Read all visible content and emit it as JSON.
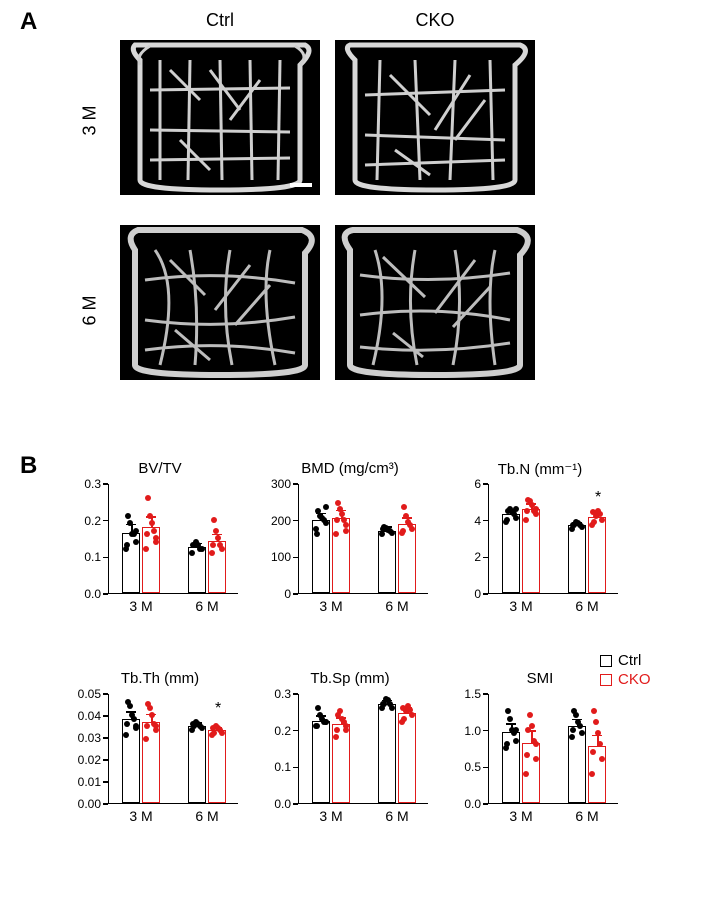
{
  "colors": {
    "ctrl": "#000000",
    "cko": "#e11b1b",
    "bg": "#ffffff"
  },
  "panelA": {
    "label": "A",
    "cols": [
      "Ctrl",
      "CKO"
    ],
    "rows": [
      "3 M",
      "6 M"
    ]
  },
  "panelB": {
    "label": "B",
    "legend": {
      "ctrl": "Ctrl",
      "cko": "CKO"
    },
    "x_labels": [
      "3 M",
      "6 M"
    ],
    "charts": [
      {
        "title": "BV/TV",
        "ylim": [
          0.0,
          0.3
        ],
        "yticks": [
          0.0,
          0.1,
          0.2,
          0.3
        ],
        "tick_format": "0.1",
        "groups": [
          {
            "ctrl": {
              "mean": 0.165,
              "err": 0.02,
              "points": [
                0.12,
                0.14,
                0.16,
                0.16,
                0.19,
                0.21,
                0.13,
                0.17
              ]
            },
            "cko": {
              "mean": 0.18,
              "err": 0.025,
              "points": [
                0.12,
                0.15,
                0.17,
                0.19,
                0.21,
                0.26,
                0.16,
                0.14
              ]
            }
          },
          {
            "ctrl": {
              "mean": 0.125,
              "err": 0.008,
              "points": [
                0.11,
                0.12,
                0.12,
                0.13,
                0.14,
                0.13,
                0.13
              ]
            },
            "cko": {
              "mean": 0.142,
              "err": 0.015,
              "points": [
                0.11,
                0.12,
                0.13,
                0.15,
                0.17,
                0.2,
                0.13
              ]
            }
          }
        ]
      },
      {
        "title": "BMD (mg/cm³)",
        "ylim": [
          0,
          300
        ],
        "yticks": [
          0,
          100,
          200,
          300
        ],
        "tick_format": "int",
        "groups": [
          {
            "ctrl": {
              "mean": 200,
              "err": 15,
              "points": [
                175,
                190,
                200,
                205,
                210,
                225,
                160,
                235
              ]
            },
            "cko": {
              "mean": 205,
              "err": 18,
              "points": [
                160,
                185,
                200,
                215,
                230,
                245,
                200,
                170
              ]
            }
          },
          {
            "ctrl": {
              "mean": 170,
              "err": 8,
              "points": [
                160,
                165,
                170,
                172,
                178,
                180,
                175
              ]
            },
            "cko": {
              "mean": 188,
              "err": 14,
              "points": [
                165,
                175,
                185,
                195,
                210,
                235,
                170
              ]
            }
          }
        ]
      },
      {
        "title": "Tb.N (mm⁻¹)",
        "ylim": [
          0,
          6
        ],
        "yticks": [
          0,
          2,
          4,
          6
        ],
        "tick_format": "int",
        "sig": [
          {
            "group": 1,
            "label": "*"
          }
        ],
        "groups": [
          {
            "ctrl": {
              "mean": 4.3,
              "err": 0.2,
              "points": [
                3.9,
                4.1,
                4.3,
                4.4,
                4.6,
                4.5,
                4.0,
                4.6
              ]
            },
            "cko": {
              "mean": 4.6,
              "err": 0.22,
              "points": [
                4.0,
                4.3,
                4.5,
                4.8,
                5.0,
                5.1,
                4.5,
                4.6
              ]
            }
          },
          {
            "ctrl": {
              "mean": 3.7,
              "err": 0.1,
              "points": [
                3.5,
                3.6,
                3.7,
                3.8,
                3.9,
                3.7,
                3.7
              ]
            },
            "cko": {
              "mean": 4.15,
              "err": 0.18,
              "points": [
                3.7,
                4.0,
                4.3,
                4.5,
                4.2,
                3.9,
                4.4
              ]
            }
          }
        ]
      },
      {
        "title": "Tb.Th (mm)",
        "ylim": [
          0.0,
          0.05
        ],
        "yticks": [
          0.0,
          0.01,
          0.02,
          0.03,
          0.04,
          0.05
        ],
        "tick_format": "0.2",
        "sig": [
          {
            "group": 1,
            "label": "*"
          }
        ],
        "groups": [
          {
            "ctrl": {
              "mean": 0.038,
              "err": 0.003,
              "points": [
                0.031,
                0.035,
                0.038,
                0.04,
                0.044,
                0.046,
                0.036,
                0.034
              ]
            },
            "cko": {
              "mean": 0.037,
              "err": 0.003,
              "points": [
                0.029,
                0.033,
                0.036,
                0.04,
                0.043,
                0.045,
                0.035,
                0.035
              ]
            }
          },
          {
            "ctrl": {
              "mean": 0.035,
              "err": 0.001,
              "points": [
                0.033,
                0.034,
                0.035,
                0.036,
                0.037,
                0.035,
                0.036
              ]
            },
            "cko": {
              "mean": 0.033,
              "err": 0.001,
              "points": [
                0.031,
                0.032,
                0.033,
                0.034,
                0.035,
                0.032,
                0.034
              ]
            }
          }
        ]
      },
      {
        "title": "Tb.Sp (mm)",
        "ylim": [
          0.0,
          0.3
        ],
        "yticks": [
          0.0,
          0.1,
          0.2,
          0.3
        ],
        "tick_format": "0.1",
        "groups": [
          {
            "ctrl": {
              "mean": 0.225,
              "err": 0.01,
              "points": [
                0.21,
                0.22,
                0.22,
                0.23,
                0.24,
                0.26,
                0.21,
                0.22
              ]
            },
            "cko": {
              "mean": 0.215,
              "err": 0.015,
              "points": [
                0.18,
                0.2,
                0.22,
                0.23,
                0.25,
                0.24,
                0.2,
                0.21
              ]
            }
          },
          {
            "ctrl": {
              "mean": 0.27,
              "err": 0.008,
              "points": [
                0.26,
                0.26,
                0.27,
                0.28,
                0.285,
                0.27,
                0.27
              ]
            },
            "cko": {
              "mean": 0.245,
              "err": 0.012,
              "points": [
                0.22,
                0.24,
                0.255,
                0.265,
                0.25,
                0.23,
                0.26
              ]
            }
          }
        ]
      },
      {
        "title": "SMI",
        "ylim": [
          0.0,
          1.5
        ],
        "yticks": [
          0.0,
          0.5,
          1.0,
          1.5
        ],
        "tick_format": "0.1",
        "groups": [
          {
            "ctrl": {
              "mean": 0.97,
              "err": 0.1,
              "points": [
                0.75,
                0.85,
                0.95,
                1.0,
                1.15,
                1.25,
                0.8,
                1.0
              ]
            },
            "cko": {
              "mean": 0.82,
              "err": 0.15,
              "points": [
                0.4,
                0.6,
                0.85,
                1.05,
                1.2,
                1.0,
                0.65,
                0.8
              ]
            }
          },
          {
            "ctrl": {
              "mean": 1.05,
              "err": 0.08,
              "points": [
                0.9,
                0.95,
                1.05,
                1.1,
                1.2,
                1.25,
                1.0
              ]
            },
            "cko": {
              "mean": 0.78,
              "err": 0.13,
              "points": [
                0.4,
                0.6,
                0.8,
                0.95,
                1.1,
                1.25,
                0.7
              ]
            }
          }
        ]
      }
    ]
  }
}
